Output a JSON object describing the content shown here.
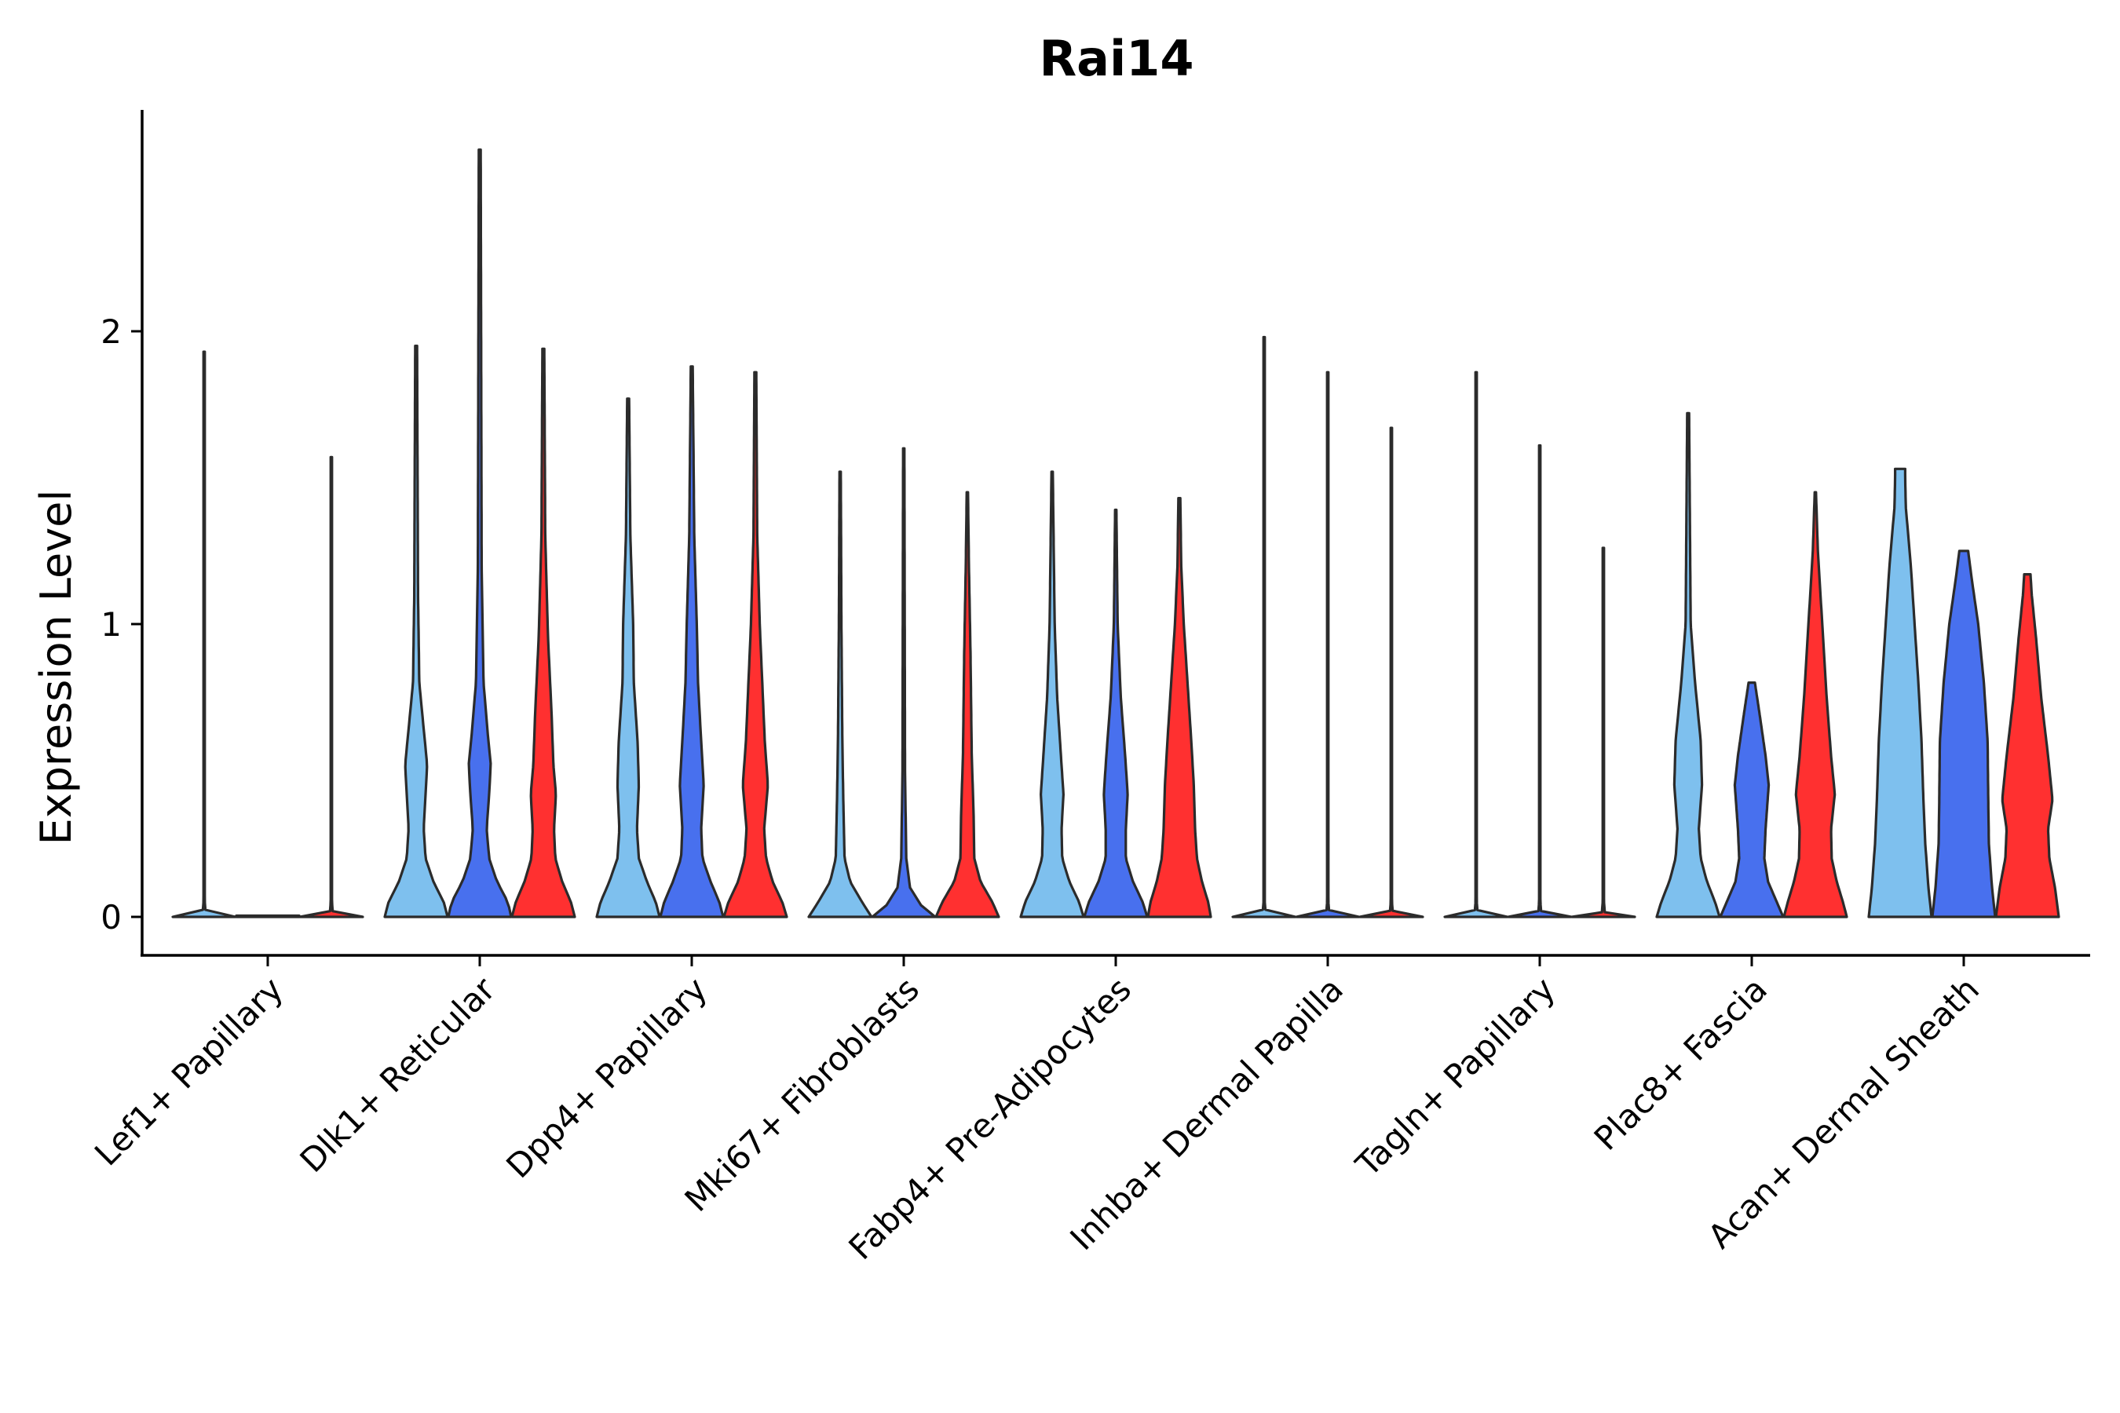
{
  "chart_data": {
    "type": "violin",
    "title": "Rai14",
    "xlabel": "",
    "ylabel": "Expression Level",
    "ylim": [
      -0.13,
      2.76
    ],
    "yticks": [
      0,
      1,
      2
    ],
    "grid": false,
    "legend": "none",
    "categories": [
      "Lef1+ Papillary",
      "Dlk1+ Reticular",
      "Dpp4+ Papillary",
      "Mki67+ Fibroblasts",
      "Fabp4+ Pre-Adipocytes",
      "Inhba+ Dermal Papilla",
      "Tagln+ Papillary",
      "Plac8+ Fascia",
      "Acan+ Dermal Sheath"
    ],
    "groups": [
      {
        "name": "group-1",
        "color": "#7ec0ee"
      },
      {
        "name": "group-2",
        "color": "#4870ee"
      },
      {
        "name": "group-3",
        "color": "#ff3030"
      }
    ],
    "violins": [
      {
        "category": 0,
        "group": 0,
        "max": 1.93,
        "profile": [
          [
            0.0,
            1.0
          ],
          [
            0.01,
            0.05
          ],
          [
            0.05,
            0.02
          ],
          [
            1.93,
            0.02
          ]
        ]
      },
      {
        "category": 0,
        "group": 1,
        "max": 0.0,
        "profile": [
          [
            0.0,
            1.0
          ],
          [
            0.01,
            0.05
          ],
          [
            0.02,
            0.02
          ]
        ]
      },
      {
        "category": 0,
        "group": 2,
        "max": 1.57,
        "profile": [
          [
            0.0,
            1.0
          ],
          [
            0.01,
            0.05
          ],
          [
            0.05,
            0.02
          ],
          [
            1.57,
            0.02
          ]
        ]
      },
      {
        "category": 1,
        "group": 0,
        "max": 1.95,
        "profile": [
          [
            0.0,
            1.0
          ],
          [
            0.05,
            0.88
          ],
          [
            0.12,
            0.55
          ],
          [
            0.2,
            0.3
          ],
          [
            0.3,
            0.24
          ],
          [
            0.42,
            0.3
          ],
          [
            0.52,
            0.35
          ],
          [
            0.62,
            0.26
          ],
          [
            0.8,
            0.1
          ],
          [
            1.1,
            0.06
          ],
          [
            1.95,
            0.03
          ]
        ]
      },
      {
        "category": 1,
        "group": 1,
        "max": 2.62,
        "profile": [
          [
            0.0,
            1.0
          ],
          [
            0.05,
            0.9
          ],
          [
            0.12,
            0.55
          ],
          [
            0.2,
            0.3
          ],
          [
            0.3,
            0.22
          ],
          [
            0.42,
            0.3
          ],
          [
            0.52,
            0.35
          ],
          [
            0.62,
            0.26
          ],
          [
            0.8,
            0.12
          ],
          [
            1.2,
            0.06
          ],
          [
            2.62,
            0.03
          ]
        ]
      },
      {
        "category": 1,
        "group": 2,
        "max": 1.94,
        "profile": [
          [
            0.0,
            1.0
          ],
          [
            0.05,
            0.88
          ],
          [
            0.12,
            0.6
          ],
          [
            0.2,
            0.38
          ],
          [
            0.3,
            0.34
          ],
          [
            0.42,
            0.4
          ],
          [
            0.52,
            0.32
          ],
          [
            0.7,
            0.26
          ],
          [
            0.95,
            0.15
          ],
          [
            1.3,
            0.06
          ],
          [
            1.94,
            0.03
          ]
        ]
      },
      {
        "category": 2,
        "group": 0,
        "max": 1.77,
        "profile": [
          [
            0.0,
            1.0
          ],
          [
            0.05,
            0.88
          ],
          [
            0.12,
            0.6
          ],
          [
            0.2,
            0.34
          ],
          [
            0.3,
            0.28
          ],
          [
            0.45,
            0.34
          ],
          [
            0.6,
            0.3
          ],
          [
            0.8,
            0.18
          ],
          [
            1.0,
            0.16
          ],
          [
            1.3,
            0.07
          ],
          [
            1.77,
            0.03
          ]
        ]
      },
      {
        "category": 2,
        "group": 1,
        "max": 1.88,
        "profile": [
          [
            0.0,
            1.0
          ],
          [
            0.05,
            0.88
          ],
          [
            0.12,
            0.6
          ],
          [
            0.2,
            0.34
          ],
          [
            0.3,
            0.3
          ],
          [
            0.45,
            0.38
          ],
          [
            0.6,
            0.3
          ],
          [
            0.8,
            0.2
          ],
          [
            1.0,
            0.16
          ],
          [
            1.3,
            0.08
          ],
          [
            1.88,
            0.03
          ]
        ]
      },
      {
        "category": 2,
        "group": 2,
        "max": 1.86,
        "profile": [
          [
            0.0,
            1.0
          ],
          [
            0.05,
            0.86
          ],
          [
            0.12,
            0.55
          ],
          [
            0.2,
            0.34
          ],
          [
            0.3,
            0.28
          ],
          [
            0.45,
            0.4
          ],
          [
            0.6,
            0.3
          ],
          [
            0.8,
            0.22
          ],
          [
            1.0,
            0.14
          ],
          [
            1.3,
            0.06
          ],
          [
            1.86,
            0.03
          ]
        ]
      },
      {
        "category": 3,
        "group": 0,
        "max": 1.52,
        "profile": [
          [
            0.0,
            1.0
          ],
          [
            0.05,
            0.7
          ],
          [
            0.12,
            0.32
          ],
          [
            0.2,
            0.14
          ],
          [
            0.4,
            0.1
          ],
          [
            0.6,
            0.07
          ],
          [
            1.0,
            0.04
          ],
          [
            1.52,
            0.02
          ]
        ]
      },
      {
        "category": 3,
        "group": 1,
        "max": 1.6,
        "profile": [
          [
            0.0,
            1.0
          ],
          [
            0.04,
            0.55
          ],
          [
            0.1,
            0.2
          ],
          [
            0.2,
            0.08
          ],
          [
            0.5,
            0.04
          ],
          [
            1.6,
            0.02
          ]
        ]
      },
      {
        "category": 3,
        "group": 2,
        "max": 1.45,
        "profile": [
          [
            0.0,
            1.0
          ],
          [
            0.05,
            0.8
          ],
          [
            0.12,
            0.42
          ],
          [
            0.2,
            0.22
          ],
          [
            0.35,
            0.2
          ],
          [
            0.55,
            0.14
          ],
          [
            0.9,
            0.1
          ],
          [
            1.2,
            0.05
          ],
          [
            1.45,
            0.02
          ]
        ]
      },
      {
        "category": 4,
        "group": 0,
        "max": 1.52,
        "profile": [
          [
            0.0,
            1.0
          ],
          [
            0.05,
            0.86
          ],
          [
            0.12,
            0.55
          ],
          [
            0.2,
            0.32
          ],
          [
            0.3,
            0.3
          ],
          [
            0.42,
            0.36
          ],
          [
            0.55,
            0.28
          ],
          [
            0.75,
            0.16
          ],
          [
            1.0,
            0.08
          ],
          [
            1.52,
            0.02
          ]
        ]
      },
      {
        "category": 4,
        "group": 1,
        "max": 1.39,
        "profile": [
          [
            0.0,
            1.0
          ],
          [
            0.05,
            0.86
          ],
          [
            0.12,
            0.55
          ],
          [
            0.2,
            0.32
          ],
          [
            0.3,
            0.32
          ],
          [
            0.42,
            0.38
          ],
          [
            0.55,
            0.3
          ],
          [
            0.75,
            0.16
          ],
          [
            1.0,
            0.06
          ],
          [
            1.39,
            0.02
          ]
        ]
      },
      {
        "category": 4,
        "group": 2,
        "max": 1.43,
        "profile": [
          [
            0.0,
            1.0
          ],
          [
            0.05,
            0.92
          ],
          [
            0.12,
            0.72
          ],
          [
            0.2,
            0.56
          ],
          [
            0.3,
            0.5
          ],
          [
            0.45,
            0.46
          ],
          [
            0.6,
            0.38
          ],
          [
            0.8,
            0.26
          ],
          [
            1.0,
            0.14
          ],
          [
            1.2,
            0.06
          ],
          [
            1.43,
            0.03
          ]
        ]
      },
      {
        "category": 5,
        "group": 0,
        "max": 1.98,
        "profile": [
          [
            0.0,
            1.0
          ],
          [
            0.01,
            0.05
          ],
          [
            0.05,
            0.02
          ],
          [
            1.98,
            0.02
          ]
        ]
      },
      {
        "category": 5,
        "group": 1,
        "max": 1.86,
        "profile": [
          [
            0.0,
            1.0
          ],
          [
            0.01,
            0.05
          ],
          [
            0.05,
            0.02
          ],
          [
            1.86,
            0.02
          ]
        ]
      },
      {
        "category": 5,
        "group": 2,
        "max": 1.67,
        "profile": [
          [
            0.0,
            1.0
          ],
          [
            0.01,
            0.05
          ],
          [
            0.05,
            0.02
          ],
          [
            1.67,
            0.02
          ]
        ]
      },
      {
        "category": 6,
        "group": 0,
        "max": 1.86,
        "profile": [
          [
            0.0,
            1.0
          ],
          [
            0.01,
            0.05
          ],
          [
            0.05,
            0.02
          ],
          [
            1.86,
            0.02
          ]
        ]
      },
      {
        "category": 6,
        "group": 1,
        "max": 1.61,
        "profile": [
          [
            0.0,
            1.0
          ],
          [
            0.01,
            0.05
          ],
          [
            0.05,
            0.02
          ],
          [
            1.61,
            0.02
          ]
        ]
      },
      {
        "category": 6,
        "group": 2,
        "max": 1.26,
        "profile": [
          [
            0.0,
            1.0
          ],
          [
            0.01,
            0.05
          ],
          [
            0.05,
            0.02
          ],
          [
            1.26,
            0.02
          ]
        ]
      },
      {
        "category": 7,
        "group": 0,
        "max": 1.72,
        "profile": [
          [
            0.0,
            1.0
          ],
          [
            0.05,
            0.86
          ],
          [
            0.12,
            0.6
          ],
          [
            0.2,
            0.4
          ],
          [
            0.3,
            0.34
          ],
          [
            0.45,
            0.44
          ],
          [
            0.6,
            0.4
          ],
          [
            0.8,
            0.22
          ],
          [
            1.0,
            0.08
          ],
          [
            1.72,
            0.03
          ]
        ]
      },
      {
        "category": 7,
        "group": 1,
        "max": 0.8,
        "profile": [
          [
            0.0,
            1.0
          ],
          [
            0.05,
            0.8
          ],
          [
            0.12,
            0.52
          ],
          [
            0.2,
            0.4
          ],
          [
            0.3,
            0.44
          ],
          [
            0.45,
            0.54
          ],
          [
            0.55,
            0.44
          ],
          [
            0.7,
            0.24
          ],
          [
            0.8,
            0.1
          ]
        ]
      },
      {
        "category": 7,
        "group": 2,
        "max": 1.45,
        "profile": [
          [
            0.0,
            1.0
          ],
          [
            0.05,
            0.88
          ],
          [
            0.12,
            0.68
          ],
          [
            0.2,
            0.52
          ],
          [
            0.3,
            0.5
          ],
          [
            0.42,
            0.62
          ],
          [
            0.55,
            0.5
          ],
          [
            0.75,
            0.36
          ],
          [
            1.0,
            0.22
          ],
          [
            1.25,
            0.08
          ],
          [
            1.45,
            0.02
          ]
        ]
      },
      {
        "category": 8,
        "group": 0,
        "max": 1.53,
        "profile": [
          [
            0.0,
            1.0
          ],
          [
            0.1,
            0.9
          ],
          [
            0.25,
            0.8
          ],
          [
            0.4,
            0.74
          ],
          [
            0.6,
            0.68
          ],
          [
            0.8,
            0.58
          ],
          [
            1.0,
            0.46
          ],
          [
            1.2,
            0.34
          ],
          [
            1.4,
            0.18
          ],
          [
            1.5,
            0.16
          ],
          [
            1.53,
            0.16
          ]
        ]
      },
      {
        "category": 8,
        "group": 1,
        "max": 1.25,
        "profile": [
          [
            0.0,
            1.0
          ],
          [
            0.1,
            0.9
          ],
          [
            0.25,
            0.8
          ],
          [
            0.4,
            0.78
          ],
          [
            0.6,
            0.76
          ],
          [
            0.8,
            0.64
          ],
          [
            1.0,
            0.46
          ],
          [
            1.15,
            0.26
          ],
          [
            1.25,
            0.14
          ]
        ]
      },
      {
        "category": 8,
        "group": 2,
        "max": 1.17,
        "profile": [
          [
            0.0,
            1.0
          ],
          [
            0.1,
            0.88
          ],
          [
            0.2,
            0.7
          ],
          [
            0.3,
            0.66
          ],
          [
            0.4,
            0.8
          ],
          [
            0.55,
            0.66
          ],
          [
            0.75,
            0.44
          ],
          [
            0.95,
            0.28
          ],
          [
            1.1,
            0.14
          ],
          [
            1.17,
            0.1
          ]
        ]
      }
    ]
  }
}
